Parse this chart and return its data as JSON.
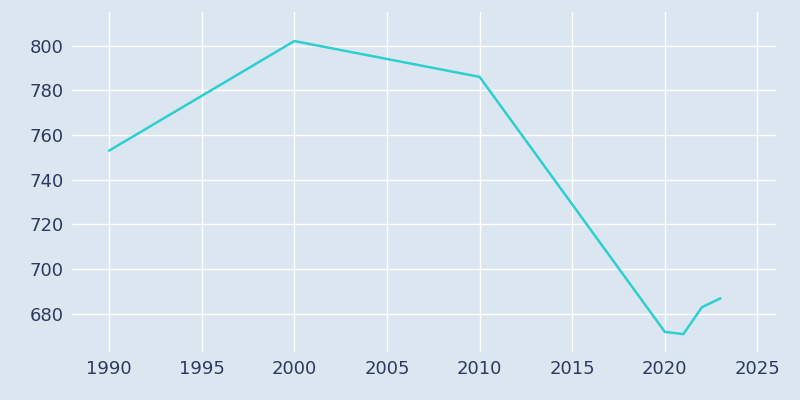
{
  "years": [
    1990,
    2000,
    2010,
    2020,
    2021,
    2022,
    2023
  ],
  "population": [
    753,
    802,
    786,
    672,
    671,
    683,
    687
  ],
  "line_color": "#2dcfcf",
  "bg_color": "#dce6f1",
  "plot_bg_color": "#dce6f1",
  "grid_color": "#ffffff",
  "tick_label_color": "#2d3a5e",
  "xlim": [
    1988,
    2026
  ],
  "ylim": [
    663,
    815
  ],
  "xticks": [
    1990,
    1995,
    2000,
    2005,
    2010,
    2015,
    2020,
    2025
  ],
  "yticks": [
    680,
    700,
    720,
    740,
    760,
    780,
    800
  ],
  "line_width": 1.8,
  "tick_fontsize": 13
}
